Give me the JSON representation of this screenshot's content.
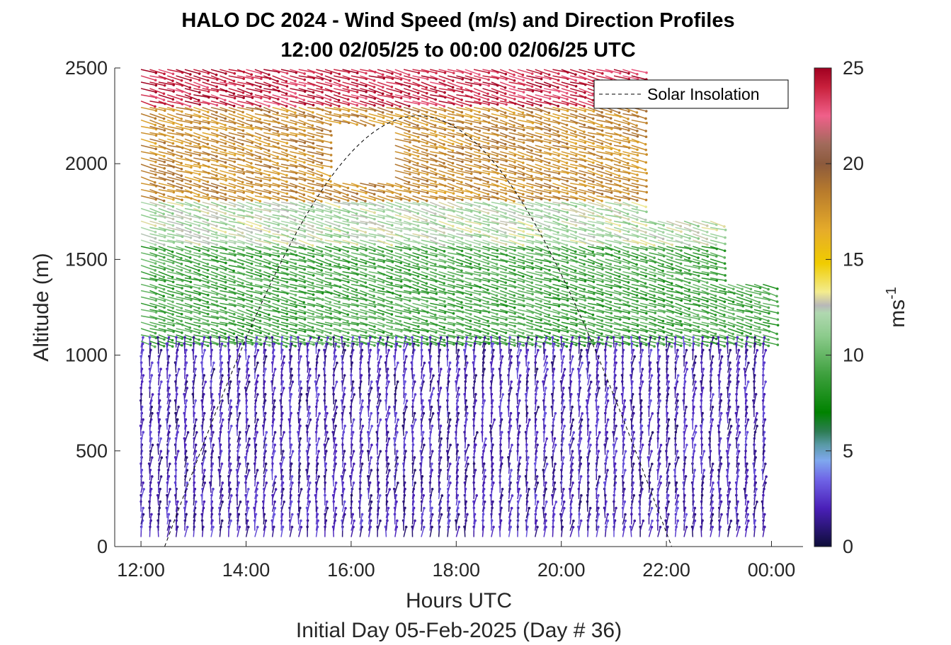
{
  "chart_data": {
    "type": "quiver",
    "title_line1": "HALO DC 2024 - Wind Speed (m/s) and Direction Profiles",
    "title_line2": "12:00 02/05/25 to 00:00 02/06/25  UTC",
    "xlabel": "Hours UTC",
    "xlabel2": "Initial Day 05-Feb-2025 (Day # 36)",
    "ylabel": "Altitude (m)",
    "x_ticks": [
      {
        "value": 12,
        "label": "12:00"
      },
      {
        "value": 14,
        "label": "14:00"
      },
      {
        "value": 16,
        "label": "16:00"
      },
      {
        "value": 18,
        "label": "18:00"
      },
      {
        "value": 20,
        "label": "20:00"
      },
      {
        "value": 22,
        "label": "22:00"
      },
      {
        "value": 24,
        "label": "00:00"
      }
    ],
    "y_ticks": [
      {
        "value": 0,
        "label": "0"
      },
      {
        "value": 500,
        "label": "500"
      },
      {
        "value": 1000,
        "label": "1000"
      },
      {
        "value": 1500,
        "label": "1500"
      },
      {
        "value": 2000,
        "label": "2000"
      },
      {
        "value": 2500,
        "label": "2500"
      }
    ],
    "xlim": [
      11.5,
      24.6
    ],
    "ylim": [
      0,
      2500
    ],
    "colorbar": {
      "label": "ms-1",
      "range": [
        0,
        25
      ],
      "ticks": [
        {
          "value": 0,
          "label": "0"
        },
        {
          "value": 5,
          "label": "5"
        },
        {
          "value": 10,
          "label": "10"
        },
        {
          "value": 15,
          "label": "15"
        },
        {
          "value": 20,
          "label": "20"
        },
        {
          "value": 25,
          "label": "25"
        }
      ],
      "color_stops": [
        {
          "v": 0,
          "c": "#0d0d38"
        },
        {
          "v": 2,
          "c": "#4a1fb8"
        },
        {
          "v": 3.5,
          "c": "#6f64e6"
        },
        {
          "v": 4.5,
          "c": "#7fa8ee"
        },
        {
          "v": 5.3,
          "c": "#5a9aa8"
        },
        {
          "v": 6,
          "c": "#2e7d55"
        },
        {
          "v": 7,
          "c": "#008200"
        },
        {
          "v": 9,
          "c": "#3ea03e"
        },
        {
          "v": 11,
          "c": "#8ccb8c"
        },
        {
          "v": 12.2,
          "c": "#b0d8b0"
        },
        {
          "v": 12.6,
          "c": "#b8b8b8"
        },
        {
          "v": 13.3,
          "c": "#f3ec8e"
        },
        {
          "v": 14.8,
          "c": "#f0cc00"
        },
        {
          "v": 16.5,
          "c": "#e6ac2a"
        },
        {
          "v": 18.5,
          "c": "#b97c2c"
        },
        {
          "v": 20,
          "c": "#8c5a3c"
        },
        {
          "v": 21,
          "c": "#a06a5a"
        },
        {
          "v": 22.5,
          "c": "#f0608a"
        },
        {
          "v": 24,
          "c": "#c8203c"
        },
        {
          "v": 25,
          "c": "#a00020"
        }
      ]
    },
    "legend": {
      "entries": [
        "Solar Insolation"
      ],
      "placement": "top-right"
    },
    "solar_insolation": {
      "start_hour": 12.45,
      "end_hour": 22.1,
      "peak_hour": 17.2,
      "peak_altitude": 2250
    },
    "wind": {
      "time_start": 12.0,
      "time_step": 0.1667,
      "time_end": 24.0,
      "alt_start": 50,
      "alt_step": 33,
      "speed_layers": [
        {
          "alt_min": 0,
          "alt_max": 1050,
          "speed": 2
        },
        {
          "alt_min": 1050,
          "alt_max": 1600,
          "speed": 9
        },
        {
          "alt_min": 1600,
          "alt_max": 1800,
          "speed": 12
        },
        {
          "alt_min": 1800,
          "alt_max": 2300,
          "speed": 18
        },
        {
          "alt_min": 2300,
          "alt_max": 2500,
          "speed": 24
        }
      ]
    }
  }
}
